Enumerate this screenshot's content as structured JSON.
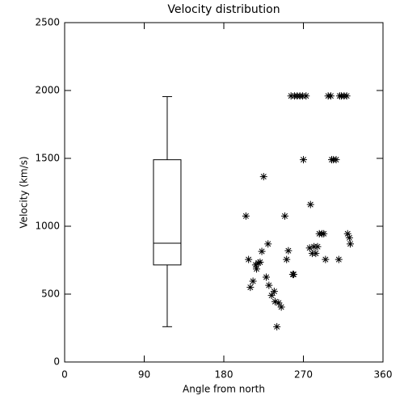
{
  "chart_data": {
    "type": "scatter",
    "title": "Velocity distribution",
    "xlabel": "Angle from north",
    "ylabel": "Velocity (km/s)",
    "xlim": [
      0,
      360
    ],
    "xticks": [
      0,
      90,
      180,
      270,
      360
    ],
    "ylim": [
      0,
      2500
    ],
    "yticks": [
      0,
      500,
      1000,
      1500,
      2000,
      2500
    ],
    "color": "#000000",
    "x": [
      205,
      208,
      210,
      213,
      216,
      217,
      219,
      221,
      223,
      225,
      228,
      230,
      231,
      234,
      237,
      238,
      240,
      242,
      245,
      249,
      251,
      253,
      256,
      258,
      259,
      260,
      263,
      266,
      269,
      273,
      270,
      277,
      278,
      280,
      282,
      284,
      286,
      288,
      291,
      293,
      295,
      298,
      301,
      302,
      304,
      307,
      310,
      311,
      313,
      316,
      319,
      320,
      322,
      323
    ],
    "values": [
      1075,
      755,
      550,
      595,
      715,
      685,
      730,
      735,
      815,
      1365,
      625,
      870,
      565,
      490,
      520,
      445,
      260,
      435,
      405,
      1075,
      755,
      820,
      1960,
      645,
      645,
      1960,
      1960,
      1960,
      1960,
      1960,
      1490,
      840,
      1160,
      800,
      850,
      800,
      850,
      945,
      945,
      945,
      755,
      1960,
      1960,
      1490,
      1490,
      1490,
      755,
      1960,
      1960,
      1960,
      1960,
      945,
      915,
      870
    ],
    "box": {
      "x": 116,
      "whislo": 260,
      "q1": 715,
      "med": 875,
      "q3": 1490,
      "whishi": 1955
    }
  }
}
